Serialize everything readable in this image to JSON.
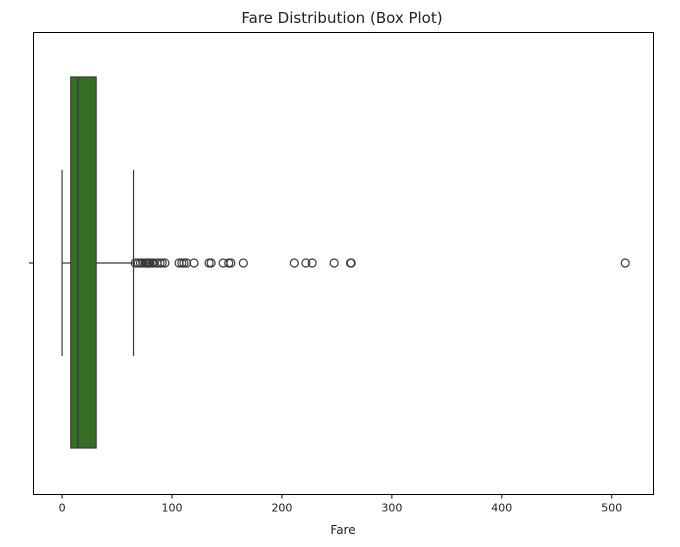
{
  "chart_data": {
    "type": "box",
    "title": "Fare Distribution (Box Plot)",
    "xlabel": "Fare",
    "ylabel": "",
    "xlim": [
      -26,
      538
    ],
    "xticks": [
      0,
      100,
      200,
      300,
      400,
      500
    ],
    "xtick_labels": [
      "0",
      "100",
      "200",
      "300",
      "400",
      "500"
    ],
    "grid": false,
    "box": {
      "whisker_low": 0,
      "q1": 7.9,
      "median": 14.45,
      "q3": 31,
      "whisker_high": 65,
      "color": "#356f24",
      "edge_color": "#3a3a3a"
    },
    "outliers": [
      66.6,
      69.3,
      71.3,
      73.5,
      75.25,
      76.7,
      77.3,
      78.3,
      79.2,
      80,
      81.9,
      83.2,
      86.5,
      89.1,
      91.1,
      93.5,
      106.4,
      108.9,
      110.9,
      113.3,
      120,
      133.7,
      135.6,
      146.5,
      151.6,
      153.5,
      164.9,
      211.3,
      221.8,
      227.5,
      247.5,
      262.4,
      263,
      512.3
    ]
  }
}
